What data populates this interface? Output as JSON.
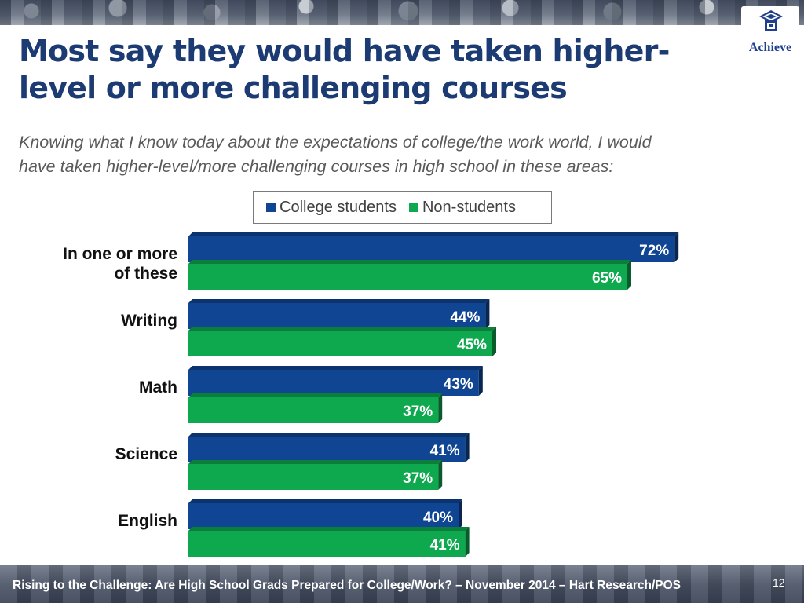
{
  "slide": {
    "title_line1": "Most say they would have taken higher-",
    "title_line2": "level or more challenging courses",
    "subtitle_line1": "Knowing what I know today about the expectations of college/the work world, I would",
    "subtitle_line2": "have taken higher-level/more challenging courses in high school in these areas:",
    "logo_text": "Achieve",
    "footer_text": "Rising to the Challenge:  Are High School Grads Prepared for College/Work? – November 2014 – Hart Research/POS",
    "page_number": "12"
  },
  "legend": {
    "college_label": "College students",
    "non_label": "Non-students"
  },
  "colors": {
    "college": "#0f4592",
    "non": "#0ea84e",
    "title": "#1c3b73"
  },
  "chart_data": {
    "type": "bar",
    "orientation": "horizontal",
    "categories": [
      "In one or more of these",
      "Writing",
      "Math",
      "Science",
      "English"
    ],
    "category_label_lines": [
      [
        "In one or more",
        "of these"
      ],
      [
        "Writing"
      ],
      [
        "Math"
      ],
      [
        "Science"
      ],
      [
        "English"
      ]
    ],
    "series": [
      {
        "name": "College students",
        "color": "#0f4592",
        "values": [
          72,
          44,
          43,
          41,
          40
        ]
      },
      {
        "name": "Non-students",
        "color": "#0ea84e",
        "values": [
          65,
          45,
          37,
          37,
          41
        ]
      }
    ],
    "value_suffix": "%",
    "xlim": [
      0,
      72
    ],
    "legend_position": "top",
    "grid": false
  }
}
